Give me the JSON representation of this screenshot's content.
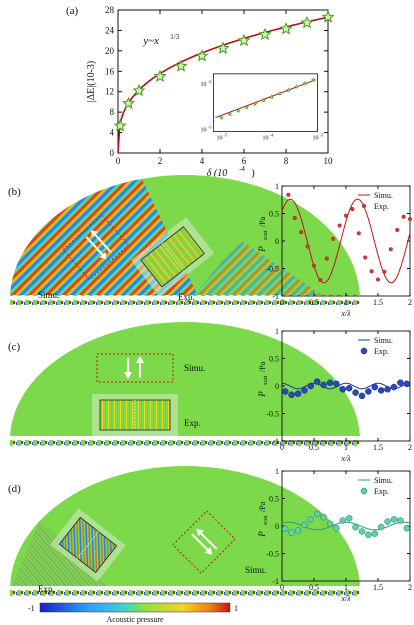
{
  "panels": {
    "a": {
      "label": "(a)"
    },
    "b": {
      "label": "(b)"
    },
    "c": {
      "label": "(c)"
    },
    "d": {
      "label": "(d)"
    }
  },
  "field_labels": {
    "simu": "Simu.",
    "exp": "Exp."
  },
  "colorbar": {
    "label": "Acoustic pressure",
    "min": "-1",
    "max": "1"
  },
  "colors": {
    "field_green": "#7bd94a",
    "sim_red": "#c0141c",
    "sim_blue": "#1f3a93",
    "sim_teal": "#2aa082"
  },
  "chart_data": [
    {
      "type": "scatter",
      "panel": "a",
      "xlabel_main": "δ (10",
      "xlabel_exp": "-4",
      "ylabel": "|ΔE|(10",
      "ylabel_exp": "-3",
      "annotation": "y~x",
      "annotation_exp": "1/3",
      "xlim": [
        0,
        10
      ],
      "ylim": [
        0,
        28
      ],
      "xticks": [
        "0",
        "2",
        "4",
        "6",
        "8",
        "10"
      ],
      "yticks": [
        "0",
        "4",
        "8",
        "12",
        "16",
        "20",
        "24",
        "28"
      ],
      "points_x": [
        0.1,
        0.5,
        1.0,
        2.0,
        3.0,
        4.0,
        5.0,
        6.0,
        7.0,
        8.0,
        9.0,
        10.0
      ],
      "points_y": [
        5.3,
        9.7,
        12.2,
        15.0,
        17.0,
        19.0,
        20.5,
        22.0,
        23.2,
        24.3,
        25.5,
        26.6
      ],
      "fit_coefficient": 12.35,
      "fit_exponent": 0.333,
      "inset": {
        "xticks": [
          "10",
          "10",
          "10"
        ],
        "xtick_exp": [
          "-5",
          "-4",
          "-3"
        ],
        "yticks": [
          "10",
          "10"
        ],
        "ytick_exp": [
          "-2",
          "-3"
        ]
      }
    },
    {
      "type": "line",
      "panel": "b",
      "xlabel": "x/λ",
      "ylabel": "P",
      "ylabel_sub": "scat",
      "ylabel_unit": "/Pa",
      "xlim": [
        0,
        2
      ],
      "ylim": [
        -1,
        1
      ],
      "xticks": [
        "0",
        "0.5",
        "1",
        "1.5",
        "2"
      ],
      "yticks": [
        "1",
        "0.5",
        "0",
        "-0.5",
        "-1"
      ],
      "legend": [
        "Simu.",
        "Exp."
      ],
      "sim": {
        "amplitude": 0.76,
        "period": 1.05,
        "phase": 0.13
      },
      "exp_x": [
        0.1,
        0.2,
        0.3,
        0.4,
        0.5,
        0.6,
        0.7,
        0.8,
        0.9,
        1.0,
        1.1,
        1.2,
        1.3,
        1.4,
        1.5,
        1.6,
        1.7,
        1.8,
        1.9,
        2.0
      ],
      "exp_y": [
        0.84,
        0.42,
        0.16,
        -0.1,
        -0.45,
        -0.71,
        -0.32,
        0.04,
        0.28,
        0.46,
        0.58,
        0.14,
        -0.3,
        -0.55,
        -0.7,
        -0.56,
        -0.15,
        0.2,
        0.44,
        0.4
      ]
    },
    {
      "type": "line",
      "panel": "c",
      "xlabel": "x/λ",
      "ylabel": "P",
      "ylabel_sub": "scat",
      "ylabel_unit": "/Pa",
      "xlim": [
        0,
        2
      ],
      "ylim": [
        -1,
        1
      ],
      "xticks": [
        "0",
        "0.5",
        "1",
        "1.5",
        "2"
      ],
      "yticks": [
        "1",
        "0.5",
        "0",
        "-0.5",
        "-1"
      ],
      "legend": [
        "Simu.",
        "Exp."
      ],
      "sim": {
        "amplitude": 0.05,
        "period": 0.5,
        "phase": 0.0
      },
      "exp_x": [
        0.05,
        0.15,
        0.25,
        0.35,
        0.45,
        0.55,
        0.65,
        0.75,
        0.85,
        0.95,
        1.05,
        1.15,
        1.25,
        1.35,
        1.45,
        1.55,
        1.65,
        1.75,
        1.85,
        1.95
      ],
      "exp_y": [
        -0.1,
        -0.16,
        -0.14,
        -0.08,
        0.0,
        0.08,
        0.02,
        0.06,
        0.04,
        -0.06,
        -0.04,
        -0.12,
        -0.18,
        -0.1,
        -0.02,
        -0.08,
        -0.06,
        -0.02,
        0.06,
        0.04
      ]
    },
    {
      "type": "line",
      "panel": "d",
      "xlabel": "x/λ",
      "ylabel": "P",
      "ylabel_sub": "scat",
      "ylabel_unit": "/Pa",
      "xlim": [
        0,
        2
      ],
      "ylim": [
        -1,
        1
      ],
      "xticks": [
        "0",
        "0.5",
        "1",
        "1.5",
        "2"
      ],
      "yticks": [
        "1",
        "0.5",
        "0",
        "-0.5",
        "-1"
      ],
      "legend": [
        "Simu.",
        "Exp."
      ],
      "sim": {
        "amplitude": 0.07,
        "period": 0.9,
        "phase": 0.1
      },
      "exp_x": [
        0.05,
        0.15,
        0.25,
        0.35,
        0.45,
        0.55,
        0.65,
        0.75,
        0.85,
        0.95,
        1.05,
        1.15,
        1.25,
        1.35,
        1.45,
        1.55,
        1.65,
        1.75,
        1.85,
        1.95
      ],
      "exp_y": [
        -0.05,
        -0.12,
        -0.08,
        0.02,
        0.12,
        0.22,
        0.16,
        0.04,
        -0.04,
        0.1,
        0.14,
        -0.02,
        -0.1,
        -0.16,
        -0.14,
        -0.02,
        0.08,
        0.12,
        0.1,
        -0.04
      ]
    }
  ]
}
